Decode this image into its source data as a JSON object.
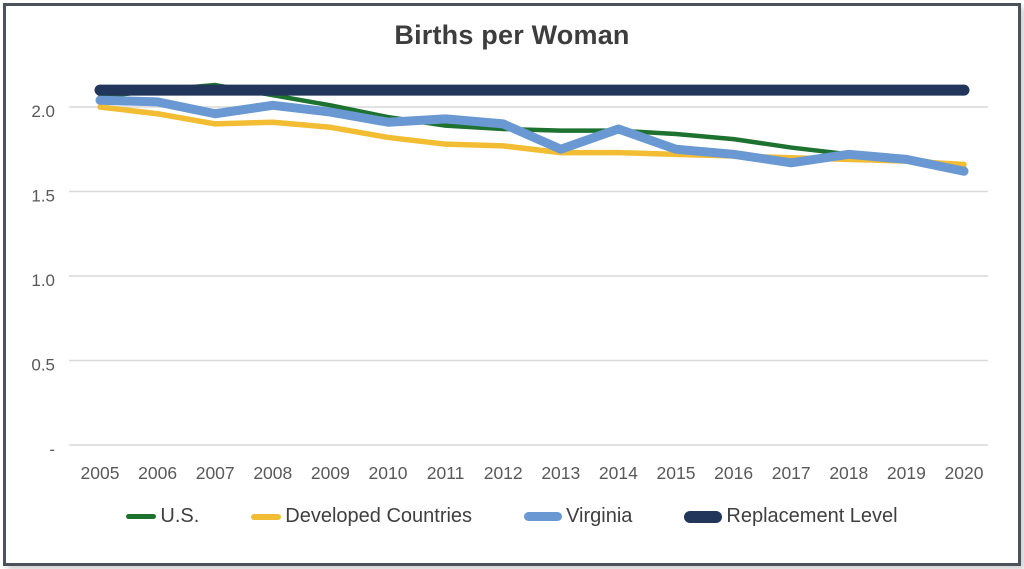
{
  "chart_data": {
    "type": "line",
    "title": "Births per Woman",
    "x": [
      2005,
      2006,
      2007,
      2008,
      2009,
      2010,
      2011,
      2012,
      2013,
      2014,
      2015,
      2016,
      2017,
      2018,
      2019,
      2020
    ],
    "x_tick_labels": [
      "2005",
      "2006",
      "2007",
      "2008",
      "2009",
      "2010",
      "2011",
      "2012",
      "2013",
      "2014",
      "2015",
      "2016",
      "2017",
      "2018",
      "2019",
      "2020"
    ],
    "y_ticks": [
      {
        "value": 2.0,
        "label": "2.0"
      },
      {
        "value": 1.5,
        "label": "1.5"
      },
      {
        "value": 1.0,
        "label": "1.0"
      },
      {
        "value": 0.5,
        "label": "0.5"
      },
      {
        "value": 0.0,
        "label": "-"
      }
    ],
    "ylim": [
      0,
      2.2
    ],
    "grid": "horizontal",
    "legend_position": "bottom",
    "series": [
      {
        "name": "U.S.",
        "color": "#1d7230",
        "line_width": 4.5,
        "values": [
          2.06,
          2.1,
          2.13,
          2.07,
          2.01,
          1.94,
          1.89,
          1.87,
          1.86,
          1.86,
          1.84,
          1.81,
          1.76,
          1.72,
          1.7,
          1.64
        ]
      },
      {
        "name": "Developed Countries",
        "color": "#f2bd33",
        "line_width": 5.5,
        "values": [
          2.0,
          1.96,
          1.9,
          1.91,
          1.88,
          1.82,
          1.78,
          1.77,
          1.73,
          1.73,
          1.72,
          1.71,
          1.7,
          1.69,
          1.68,
          1.66
        ]
      },
      {
        "name": "Virginia",
        "color": "#6a98d2",
        "line_width": 9,
        "values": [
          2.04,
          2.03,
          1.96,
          2.01,
          1.97,
          1.91,
          1.93,
          1.9,
          1.75,
          1.87,
          1.75,
          1.72,
          1.67,
          1.72,
          1.69,
          1.62
        ]
      },
      {
        "name": "Replacement Level",
        "color": "#22365c",
        "line_width": 11,
        "values": [
          2.1,
          2.1,
          2.1,
          2.1,
          2.1,
          2.1,
          2.1,
          2.1,
          2.1,
          2.1,
          2.1,
          2.1,
          2.1,
          2.1,
          2.1,
          2.1
        ]
      }
    ]
  },
  "colors": {
    "grid": "#d9d9d9",
    "axis_text": "#595959",
    "legend_text": "#3f3f3f",
    "title_text": "#3d3d3d",
    "frame_border": "#4b525a"
  }
}
